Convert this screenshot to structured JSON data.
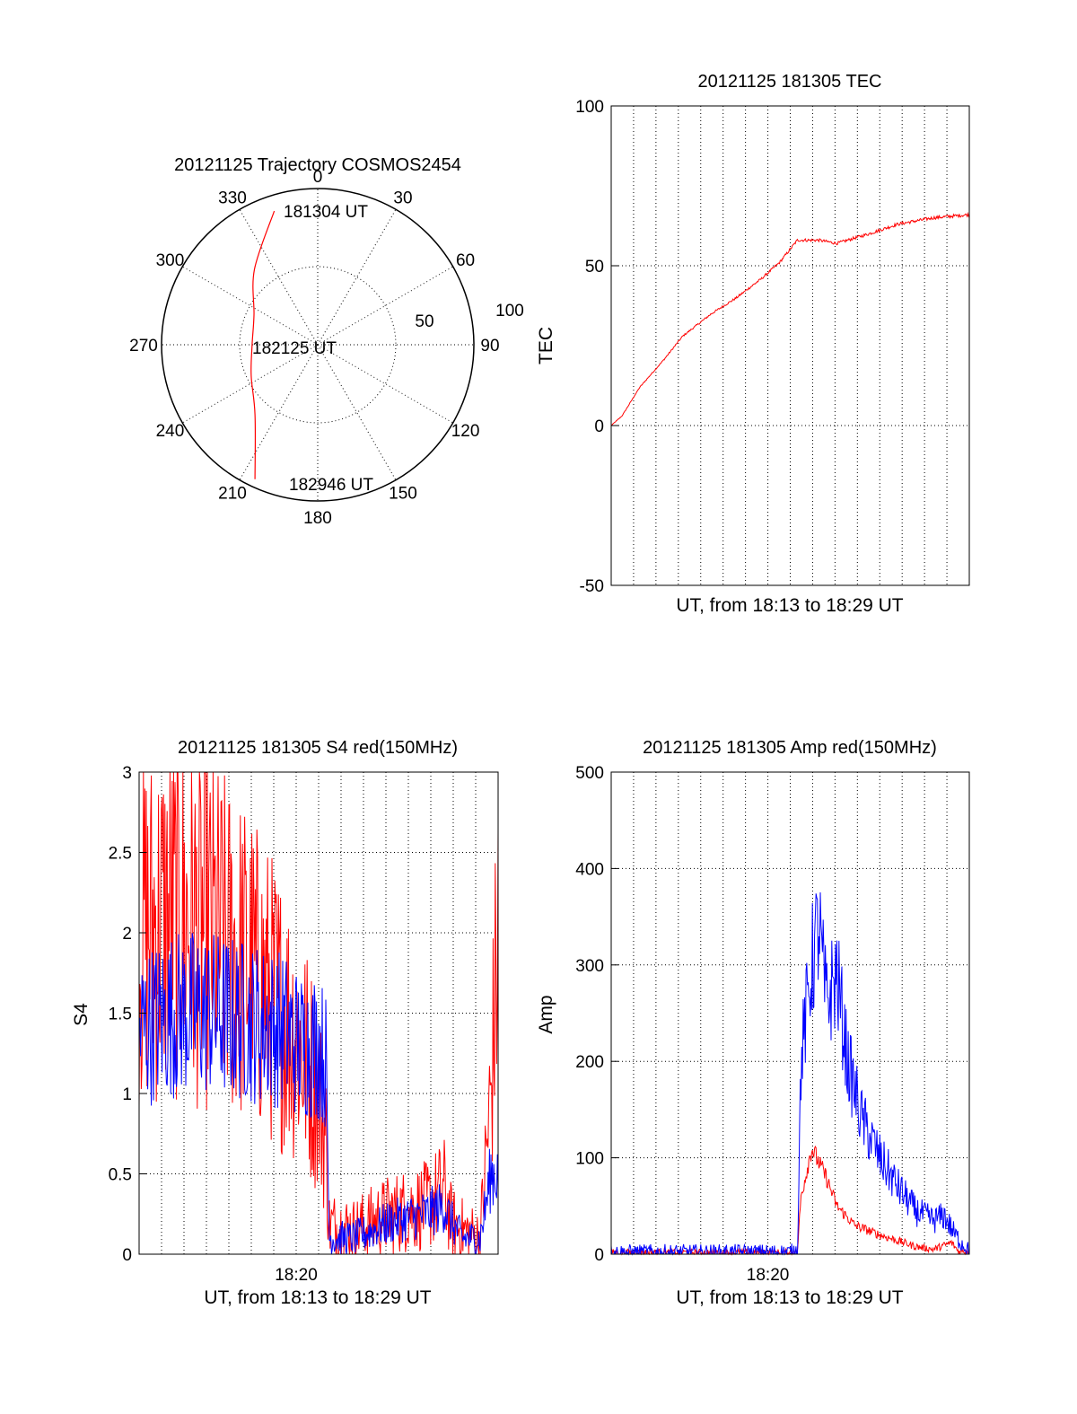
{
  "figure": {
    "background": "#ffffff"
  },
  "colors": {
    "red": "#ff0000",
    "blue": "#0000ff",
    "axis": "#000000"
  },
  "chart_data": [
    {
      "id": "trajectory",
      "type": "polar",
      "title": "20121125 Trajectory COSMOS2454",
      "azimuth_ticks": [
        "0",
        "30",
        "60",
        "90",
        "120",
        "150",
        "180",
        "210",
        "240",
        "270",
        "300",
        "330"
      ],
      "radial_ticks": [
        "50",
        "100"
      ],
      "rlim": [
        0,
        100
      ],
      "grid": true,
      "annotations": [
        "181304 UT",
        "182125 UT",
        "182946 UT"
      ],
      "series": [
        {
          "color": "red",
          "points_az_r": [
            [
              342,
              90
            ],
            [
              320,
              63
            ],
            [
              295,
              45
            ],
            [
              270,
              42
            ],
            [
              245,
              47
            ],
            [
              222,
              60
            ],
            [
              205,
              95
            ]
          ]
        }
      ]
    },
    {
      "id": "tec",
      "type": "line",
      "title": "20121125 181305 TEC",
      "xlabel": "UT, from 18:13 to 18:29 UT",
      "ylabel": "TEC",
      "ylim": [
        -50,
        100
      ],
      "yticks": [
        "-50",
        "0",
        "50",
        "100"
      ],
      "xticks": [],
      "grid": true,
      "series": [
        {
          "color": "red",
          "x_fraction": [
            0,
            0.03,
            0.08,
            0.15,
            0.2,
            0.28,
            0.35,
            0.42,
            0.47,
            0.52,
            0.58,
            0.63,
            0.72,
            0.8,
            0.9,
            1.0
          ],
          "values": [
            0,
            3,
            12,
            21,
            28,
            35,
            40,
            46,
            51,
            58,
            58,
            57,
            60,
            63,
            65,
            66
          ],
          "noise": 0.6
        }
      ]
    },
    {
      "id": "s4",
      "type": "line",
      "title": "20121125 181305 S4 red(150MHz)",
      "xlabel": "UT, from 18:13 to 18:29 UT",
      "ylabel": "S4",
      "ylim": [
        0,
        3
      ],
      "yticks": [
        "0",
        "0.5",
        "1",
        "1.5",
        "2",
        "2.5",
        "3"
      ],
      "xticks": [
        "18:20"
      ],
      "grid": true,
      "series": [
        {
          "color": "red",
          "x_fraction": [
            0,
            0.1,
            0.2,
            0.3,
            0.4,
            0.45,
            0.5,
            0.52,
            0.53,
            0.6,
            0.7,
            0.8,
            0.85,
            0.87,
            0.9,
            0.95,
            0.98,
            1.0
          ],
          "values": [
            2.0,
            2.1,
            2.0,
            1.8,
            1.5,
            1.3,
            1.0,
            0.7,
            0.18,
            0.15,
            0.25,
            0.3,
            0.4,
            0.2,
            0.15,
            0.1,
            1.0,
            2.0
          ],
          "noise": 0.75
        },
        {
          "color": "blue",
          "x_fraction": [
            0,
            0.1,
            0.2,
            0.3,
            0.4,
            0.45,
            0.5,
            0.52,
            0.53,
            0.6,
            0.7,
            0.8,
            0.85,
            0.87,
            0.9,
            0.95,
            0.98,
            1.0
          ],
          "values": [
            1.4,
            1.5,
            1.5,
            1.45,
            1.4,
            1.3,
            1.3,
            1.2,
            0.1,
            0.1,
            0.2,
            0.25,
            0.3,
            0.2,
            0.1,
            0.1,
            0.5,
            0.5
          ],
          "noise": 0.45
        }
      ]
    },
    {
      "id": "amp",
      "type": "line",
      "title": "20121125 181305 Amp red(150MHz)",
      "xlabel": "UT, from 18:13 to 18:29 UT",
      "ylabel": "Amp",
      "ylim": [
        0,
        500
      ],
      "yticks": [
        "0",
        "100",
        "200",
        "300",
        "400",
        "500"
      ],
      "xticks": [
        "18:20"
      ],
      "grid": true,
      "series": [
        {
          "color": "red",
          "x_fraction": [
            0,
            0.5,
            0.52,
            0.53,
            0.56,
            0.6,
            0.63,
            0.68,
            0.75,
            0.85,
            0.9,
            0.95,
            0.97,
            1.0
          ],
          "values": [
            2,
            2,
            3,
            60,
            110,
            80,
            50,
            30,
            20,
            8,
            5,
            12,
            3,
            3
          ],
          "noise": 18
        },
        {
          "color": "blue",
          "x_fraction": [
            0,
            0.5,
            0.52,
            0.53,
            0.56,
            0.58,
            0.6,
            0.63,
            0.66,
            0.7,
            0.75,
            0.8,
            0.85,
            0.9,
            0.93,
            0.96,
            1.0
          ],
          "values": [
            2,
            2,
            5,
            200,
            300,
            340,
            260,
            290,
            200,
            140,
            100,
            70,
            45,
            35,
            40,
            20,
            3
          ],
          "noise": 45
        }
      ]
    }
  ]
}
